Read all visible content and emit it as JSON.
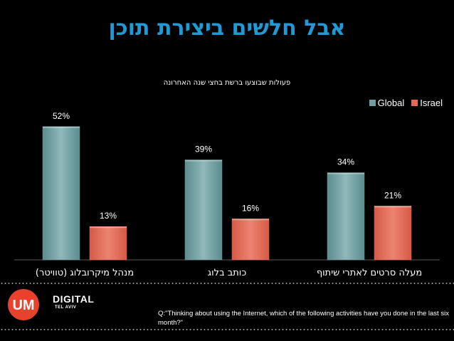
{
  "slide_title": "אבל חלשים ביצירת תוכן",
  "question_text": "Q:\"Thinking about using the Internet, which of the following activities have you done in the last six month?\"",
  "logo": {
    "main": "UM",
    "text1": "DIGITAL",
    "text2": "TEL AVIV"
  },
  "colors": {
    "background": "#000000",
    "title": "#1e9bd7",
    "global": "#6f9ea0",
    "israel": "#e06a55"
  },
  "chart_data": {
    "type": "bar",
    "title": "פעולות שבוצעו ברשת בחצי שנה האחרונה",
    "categories": [
      "מנהל מיקרובלוג (טוויטר)",
      "כותב בלוג",
      "מעלה סרטים לאתרי שיתוף"
    ],
    "series": [
      {
        "name": "Global",
        "values": [
          52,
          39,
          34
        ],
        "labels": [
          "52%",
          "39%",
          "34%"
        ]
      },
      {
        "name": "Israel",
        "values": [
          13,
          16,
          21
        ],
        "labels": [
          "13%",
          "16%",
          "21%"
        ]
      }
    ],
    "ylim": [
      0,
      60
    ],
    "grid": false,
    "legend": "top-right"
  }
}
